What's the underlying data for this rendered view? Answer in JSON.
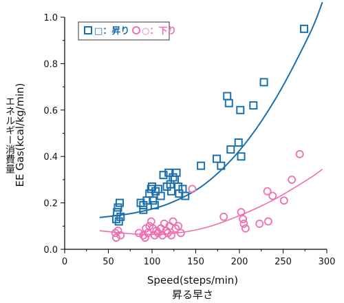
{
  "chart_data": {
    "type": "scatter",
    "xlabel": "Speed(steps/min)",
    "xlabel_sub": "昇る早さ",
    "ylabel": "EE Gas(kcal/kg/min)",
    "ylabel_sub": "エネルギー消費量",
    "xlim": [
      0,
      300
    ],
    "ylim": [
      0,
      1.0
    ],
    "x_ticks": [
      "0",
      "50",
      "100",
      "150",
      "200",
      "250",
      "300"
    ],
    "y_ticks": [
      "0.0",
      "0.2",
      "0.4",
      "0.6",
      "0.8",
      "1.0"
    ],
    "x_tick_values": [
      0,
      50,
      100,
      150,
      200,
      250,
      300
    ],
    "y_tick_values": [
      0,
      0.2,
      0.4,
      0.6,
      0.8,
      1.0
    ],
    "grid": false,
    "legend_position": "top-left",
    "series": [
      {
        "name": "□：昇り",
        "marker": "square",
        "color": "#1a6fad",
        "points": [
          [
            59,
            0.13
          ],
          [
            60,
            0.16
          ],
          [
            61,
            0.18
          ],
          [
            62,
            0.12
          ],
          [
            63,
            0.2
          ],
          [
            64,
            0.14
          ],
          [
            87,
            0.2
          ],
          [
            90,
            0.19
          ],
          [
            90,
            0.17
          ],
          [
            94,
            0.21
          ],
          [
            97,
            0.24
          ],
          [
            99,
            0.26
          ],
          [
            100,
            0.27
          ],
          [
            101,
            0.21
          ],
          [
            103,
            0.19
          ],
          [
            104,
            0.25
          ],
          [
            107,
            0.26
          ],
          [
            110,
            0.23
          ],
          [
            113,
            0.32
          ],
          [
            117,
            0.27
          ],
          [
            119,
            0.33
          ],
          [
            121,
            0.28
          ],
          [
            122,
            0.25
          ],
          [
            124,
            0.31
          ],
          [
            126,
            0.3
          ],
          [
            128,
            0.33
          ],
          [
            130,
            0.27
          ],
          [
            131,
            0.24
          ],
          [
            135,
            0.26
          ],
          [
            138,
            0.23
          ],
          [
            156,
            0.36
          ],
          [
            174,
            0.39
          ],
          [
            179,
            0.36
          ],
          [
            186,
            0.66
          ],
          [
            188,
            0.63
          ],
          [
            190,
            0.43
          ],
          [
            199,
            0.46
          ],
          [
            201,
            0.6
          ],
          [
            202,
            0.4
          ],
          [
            216,
            0.62
          ],
          [
            228,
            0.72
          ],
          [
            274,
            0.95
          ]
        ],
        "trend": [
          [
            40,
            0.137
          ],
          [
            80,
            0.157
          ],
          [
            120,
            0.198
          ],
          [
            160,
            0.28
          ],
          [
            200,
            0.425
          ],
          [
            240,
            0.64
          ],
          [
            280,
            0.925
          ],
          [
            295,
            1.065
          ]
        ]
      },
      {
        "name": "○：下り",
        "marker": "circle",
        "color": "#ef6eb2",
        "points": [
          [
            58,
            0.07
          ],
          [
            59,
            0.05
          ],
          [
            61,
            0.08
          ],
          [
            64,
            0.06
          ],
          [
            85,
            0.07
          ],
          [
            90,
            0.06
          ],
          [
            92,
            0.05
          ],
          [
            93,
            0.09
          ],
          [
            95,
            0.07
          ],
          [
            97,
            0.1
          ],
          [
            99,
            0.12
          ],
          [
            101,
            0.09
          ],
          [
            103,
            0.06
          ],
          [
            105,
            0.08
          ],
          [
            107,
            0.07
          ],
          [
            110,
            0.09
          ],
          [
            112,
            0.06
          ],
          [
            114,
            0.11
          ],
          [
            116,
            0.08
          ],
          [
            118,
            0.07
          ],
          [
            120,
            0.1
          ],
          [
            122,
            0.06
          ],
          [
            124,
            0.12
          ],
          [
            127,
            0.09
          ],
          [
            130,
            0.1
          ],
          [
            133,
            0.07
          ],
          [
            146,
            0.26
          ],
          [
            182,
            0.14
          ],
          [
            202,
            0.16
          ],
          [
            204,
            0.13
          ],
          [
            205,
            0.11
          ],
          [
            207,
            0.09
          ],
          [
            223,
            0.11
          ],
          [
            232,
            0.25
          ],
          [
            233,
            0.12
          ],
          [
            238,
            0.23
          ],
          [
            251,
            0.21
          ],
          [
            260,
            0.3
          ],
          [
            269,
            0.41
          ]
        ],
        "trend": [
          [
            40,
            0.08
          ],
          [
            80,
            0.066
          ],
          [
            120,
            0.067
          ],
          [
            160,
            0.092
          ],
          [
            200,
            0.145
          ],
          [
            240,
            0.215
          ],
          [
            280,
            0.305
          ],
          [
            295,
            0.345
          ]
        ]
      }
    ]
  }
}
